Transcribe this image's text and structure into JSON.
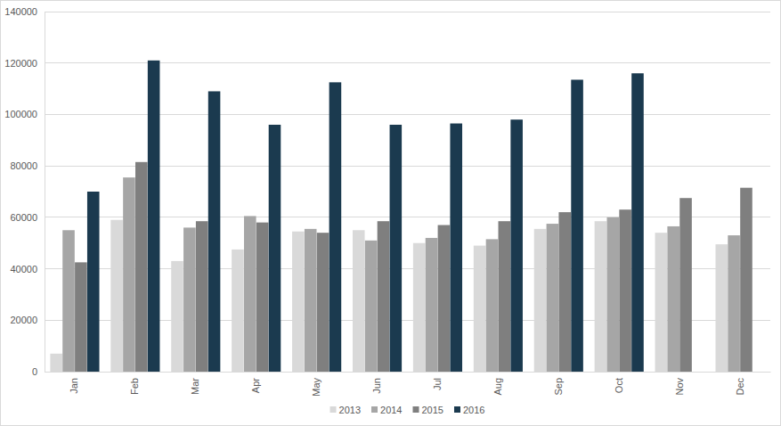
{
  "chart_data": {
    "type": "bar",
    "categories": [
      "Jan",
      "Feb",
      "Mar",
      "Apr",
      "May",
      "Jun",
      "Jul",
      "Aug",
      "Sep",
      "Oct",
      "Nov",
      "Dec"
    ],
    "series": [
      {
        "name": "2013",
        "color": "#d9d9d9",
        "values": [
          7000,
          59000,
          43000,
          47500,
          54500,
          55000,
          50000,
          49000,
          55500,
          58500,
          54000,
          49500
        ]
      },
      {
        "name": "2014",
        "color": "#a6a6a6",
        "values": [
          55000,
          75500,
          56000,
          60500,
          55500,
          51000,
          52000,
          51500,
          57500,
          60000,
          56500,
          53000
        ]
      },
      {
        "name": "2015",
        "color": "#7f7f7f",
        "values": [
          42500,
          81500,
          58500,
          58000,
          54000,
          58500,
          57000,
          58500,
          62000,
          63000,
          67500,
          71500
        ]
      },
      {
        "name": "2016",
        "color": "#1b3a4f",
        "values": [
          70000,
          121000,
          109000,
          96000,
          112500,
          96000,
          96500,
          98000,
          113500,
          116000,
          null,
          null
        ]
      }
    ],
    "ylim": [
      0,
      140000
    ],
    "yticks": [
      0,
      20000,
      40000,
      60000,
      80000,
      100000,
      120000,
      140000
    ],
    "grid": true,
    "legend": "bottom"
  }
}
